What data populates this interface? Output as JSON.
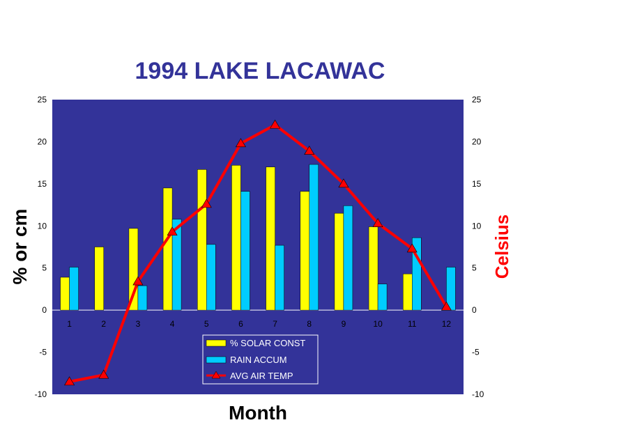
{
  "chart_data": {
    "type": "bar",
    "title": "1994 LAKE LACAWAC",
    "xlabel": "Month",
    "ylabel": "% or cm",
    "y2label": "Celsius",
    "ylim": [
      -10,
      25
    ],
    "y2lim": [
      -10,
      25
    ],
    "yticks": [
      "-10",
      "-5",
      "0",
      "5",
      "10",
      "15",
      "20",
      "25"
    ],
    "y2ticks": [
      "-10",
      "-5",
      "0",
      "5",
      "10",
      "15",
      "20",
      "25"
    ],
    "categories": [
      "1",
      "2",
      "3",
      "4",
      "5",
      "6",
      "7",
      "8",
      "9",
      "10",
      "11",
      "12"
    ],
    "series": [
      {
        "name": "% SOLAR CONST",
        "type": "bar",
        "color": "#ffff00",
        "values": [
          3.9,
          7.5,
          9.7,
          14.5,
          16.7,
          17.2,
          17.0,
          14.1,
          11.5,
          9.9,
          4.3,
          0
        ]
      },
      {
        "name": "RAIN ACCUM",
        "type": "bar",
        "color": "#00ccff",
        "values": [
          5.1,
          0,
          2.9,
          10.8,
          7.8,
          14.1,
          7.7,
          17.3,
          12.4,
          3.1,
          8.6,
          5.1
        ]
      },
      {
        "name": "AVG  AIR  TEMP",
        "type": "line",
        "color": "#ff0000",
        "axis": "right",
        "values": [
          -8.5,
          -7.7,
          3.4,
          9.3,
          12.6,
          19.8,
          22.0,
          18.9,
          15.0,
          10.3,
          7.3,
          0.4
        ]
      }
    ],
    "legend_position": "bottom-center",
    "plot_background": "#333399",
    "grid": false
  }
}
